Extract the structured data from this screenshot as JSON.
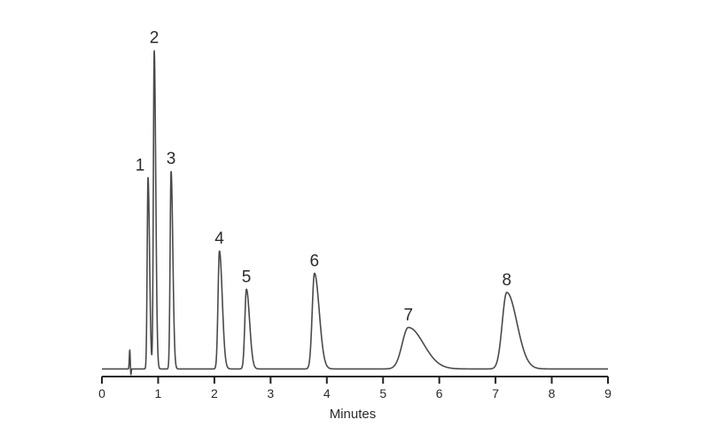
{
  "chart_data": {
    "type": "line",
    "title": "",
    "xlabel": "Minutes",
    "ylabel": "",
    "xlim": [
      0,
      9
    ],
    "ylim": [
      0,
      1
    ],
    "x_ticks": [
      0,
      1,
      2,
      3,
      4,
      5,
      6,
      7,
      8,
      9
    ],
    "x_tick_labels": [
      "0",
      "1",
      "2",
      "3",
      "4",
      "5",
      "6",
      "7",
      "8",
      "9"
    ],
    "grid": false,
    "legend": "none",
    "baseline": 0.01,
    "line_color": "#4a4a4a",
    "injection_dip": {
      "x": 0.5,
      "min": -0.02,
      "max": 0.06
    },
    "peaks": [
      {
        "label": "1",
        "rt": 0.82,
        "height": 0.6,
        "width": 0.015,
        "tail": 0.012
      },
      {
        "label": "2",
        "rt": 0.93,
        "height": 1.0,
        "width": 0.015,
        "tail": 0.012
      },
      {
        "label": "3",
        "rt": 1.23,
        "height": 0.62,
        "width": 0.017,
        "tail": 0.014
      },
      {
        "label": "4",
        "rt": 2.09,
        "height": 0.37,
        "width": 0.025,
        "tail": 0.025
      },
      {
        "label": "5",
        "rt": 2.57,
        "height": 0.25,
        "width": 0.028,
        "tail": 0.028
      },
      {
        "label": "6",
        "rt": 3.78,
        "height": 0.3,
        "width": 0.04,
        "tail": 0.045
      },
      {
        "label": "7",
        "rt": 5.45,
        "height": 0.13,
        "width": 0.11,
        "tail": 0.16
      },
      {
        "label": "8",
        "rt": 7.2,
        "height": 0.24,
        "width": 0.08,
        "tail": 0.1
      }
    ]
  }
}
